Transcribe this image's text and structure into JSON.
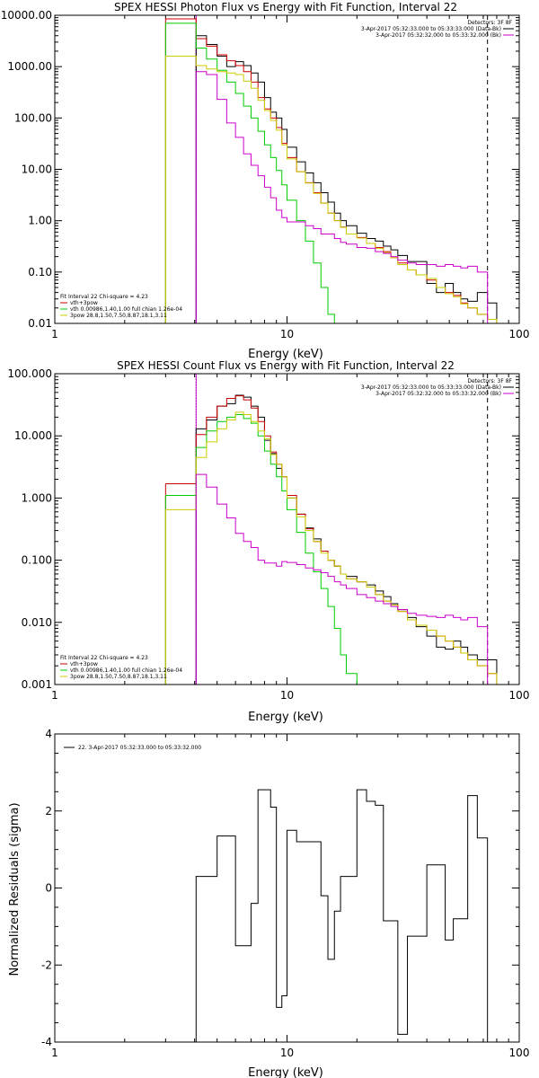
{
  "chart_data": [
    {
      "type": "line",
      "title": "SPEX HESSI Photon Flux vs Energy with Fit Function, Interval 22",
      "xlabel": "Energy (keV)",
      "ylabel": "",
      "xscale": "log",
      "yscale": "log",
      "xlim": [
        1,
        100
      ],
      "ylim": [
        0.01,
        10000
      ],
      "xticks": [
        1,
        10,
        100
      ],
      "xtick_labels": [
        "1",
        "10",
        "100"
      ],
      "yticks": [
        0.01,
        0.1,
        1,
        10,
        100,
        1000,
        10000
      ],
      "ytick_labels": [
        "0.01",
        "0.10",
        "1.00",
        "10.00",
        "100.00",
        "1000.00",
        "10000.00"
      ],
      "vlines": [
        {
          "x": 4.06,
          "style": "dotted",
          "color": "#000000"
        },
        {
          "x": 4.06,
          "style": "solid",
          "color": "#cc00cc"
        },
        {
          "x": 73.0,
          "style": "dashed",
          "color": "#000000"
        }
      ],
      "legend_top_right": [
        {
          "text": "Detectors: 3F 8F",
          "color": "",
          "sample": false
        },
        {
          "text": "3-Apr-2017 05:32:33.000 to 05:33:33.000 (Data-Bk)",
          "color": "#000000",
          "sample": true
        },
        {
          "text": "3-Apr-2017 05:32:32.000 to 05:33:32.000 (Bk)",
          "color": "#cc00cc",
          "sample": true
        }
      ],
      "legend_bottom_left": [
        {
          "text": "Fit Interval 22    Chi-square = 4.23",
          "color": "#000000"
        },
        {
          "text": "vth+3pow",
          "color": "#cc0000"
        },
        {
          "text": "vth 0.00986,1.40,1.00  full chian 1.26e-04",
          "color": "#00cc00"
        },
        {
          "text": "3pow 28.8,1.50,7.50,8.87,18.1,3.11",
          "color": "#cccc00"
        }
      ],
      "bin_edges": [
        3.0,
        4.06,
        4.5,
        5.0,
        5.5,
        6.0,
        6.5,
        7.0,
        7.5,
        8.0,
        8.5,
        9.0,
        9.5,
        10.0,
        11.0,
        12.0,
        13.0,
        14.0,
        15.0,
        16.0,
        17.0,
        18.0,
        20.0,
        22.0,
        24.0,
        26.0,
        28.0,
        30.0,
        33.0,
        36.0,
        40.0,
        44.0,
        48.0,
        52.0,
        56.0,
        60.0,
        66.0,
        73.0,
        80.0,
        88.0
      ],
      "series": [
        {
          "name": "Data-Bk",
          "color": "#000000",
          "values": [
            null,
            4000,
            2700,
            1600,
            1000,
            1250,
            1050,
            750,
            500,
            250,
            130,
            100,
            60,
            27,
            14,
            8.5,
            5.5,
            3.5,
            2.3,
            1.4,
            1.0,
            0.8,
            0.57,
            0.45,
            0.4,
            0.32,
            0.27,
            0.21,
            0.16,
            0.16,
            0.06,
            0.04,
            0.06,
            0.04,
            0.03,
            0.027,
            0.04,
            0.025,
            null
          ]
        },
        {
          "name": "vth+3pow",
          "color": "#cc0000",
          "values": [
            8500,
            3500,
            2500,
            1700,
            1300,
            1050,
            800,
            500,
            250,
            150,
            100,
            65,
            32,
            17,
            9.0,
            5.5,
            3.5,
            2.2,
            1.4,
            1.0,
            0.75,
            0.55,
            0.47,
            0.36,
            0.3,
            0.25,
            0.19,
            0.15,
            0.11,
            0.088,
            0.07,
            0.05,
            0.04,
            0.035,
            0.025,
            0.02,
            0.015,
            0.012,
            0.01
          ]
        },
        {
          "name": "vth",
          "color": "#00cc00",
          "values": [
            7000,
            2300,
            1400,
            850,
            500,
            300,
            170,
            100,
            55,
            30,
            17,
            9.5,
            5.0,
            2.5,
            1.0,
            0.4,
            0.15,
            0.05,
            0.015,
            null,
            null,
            null,
            null,
            null,
            null,
            null,
            null,
            null,
            null,
            null,
            null,
            null,
            null,
            null,
            null,
            null,
            null,
            null,
            null
          ]
        },
        {
          "name": "3pow",
          "color": "#cccc00",
          "values": [
            1600,
            1050,
            900,
            800,
            750,
            700,
            520,
            380,
            220,
            140,
            90,
            58,
            30,
            16,
            9.0,
            5.4,
            3.4,
            2.2,
            1.4,
            1.0,
            0.74,
            0.55,
            0.46,
            0.36,
            0.29,
            0.24,
            0.19,
            0.14,
            0.11,
            0.088,
            0.075,
            0.05,
            0.038,
            0.033,
            0.024,
            0.02,
            0.015,
            0.012,
            0.01
          ]
        },
        {
          "name": "Bk",
          "color": "#cc00cc",
          "values": [
            null,
            800,
            700,
            230,
            80,
            42,
            20,
            12,
            7.5,
            4.5,
            2.8,
            1.6,
            1.15,
            0.95,
            0.95,
            0.8,
            0.7,
            0.55,
            0.55,
            0.45,
            0.38,
            0.35,
            0.3,
            0.29,
            0.25,
            0.23,
            0.2,
            0.17,
            0.15,
            0.14,
            0.14,
            0.13,
            0.14,
            0.13,
            0.12,
            0.13,
            0.1,
            0.01,
            null
          ]
        }
      ]
    },
    {
      "type": "line",
      "title": "SPEX HESSI Count Flux vs Energy with Fit Function, Interval 22",
      "xlabel": "Energy (keV)",
      "ylabel": "",
      "xscale": "log",
      "yscale": "log",
      "xlim": [
        1,
        100
      ],
      "ylim": [
        0.001,
        100
      ],
      "xticks": [
        1,
        10,
        100
      ],
      "xtick_labels": [
        "1",
        "10",
        "100"
      ],
      "yticks": [
        0.001,
        0.01,
        0.1,
        1,
        10,
        100
      ],
      "ytick_labels": [
        "0.001",
        "0.010",
        "0.100",
        "1.000",
        "10.000",
        "100.000"
      ],
      "vlines": [
        {
          "x": 4.06,
          "style": "dotted",
          "color": "#000000"
        },
        {
          "x": 4.06,
          "style": "solid",
          "color": "#cc00cc"
        },
        {
          "x": 73.0,
          "style": "dashed",
          "color": "#000000"
        }
      ],
      "legend_top_right": [
        {
          "text": "Detectors: 3F 8F",
          "color": "",
          "sample": false
        },
        {
          "text": "3-Apr-2017 05:32:33.000 to 05:33:33.000 (Data-Bk)",
          "color": "#000000",
          "sample": true
        },
        {
          "text": "3-Apr-2017 05:32:32.000 to 05:33:32.000 (Bk)",
          "color": "#cc00cc",
          "sample": true
        }
      ],
      "legend_bottom_left": [
        {
          "text": "Fit Interval 22    Chi-square = 4.23",
          "color": "#000000"
        },
        {
          "text": "vth+3pow",
          "color": "#cc0000"
        },
        {
          "text": "vth 0.00986,1.40,1.00  full chian 1.26e-04",
          "color": "#00cc00"
        },
        {
          "text": "3pow 28.8,1.50,7.50,8.87,18.1,3.11",
          "color": "#cccc00"
        }
      ],
      "bin_edges": [
        3.0,
        4.06,
        4.5,
        5.0,
        5.5,
        6.0,
        6.5,
        7.0,
        7.5,
        8.0,
        8.5,
        9.0,
        9.5,
        10.0,
        11.0,
        12.0,
        13.0,
        14.0,
        15.0,
        16.0,
        17.0,
        18.0,
        20.0,
        22.0,
        24.0,
        26.0,
        28.0,
        30.0,
        33.0,
        36.0,
        40.0,
        44.0,
        48.0,
        52.0,
        56.0,
        60.0,
        66.0,
        73.0,
        80.0,
        88.0
      ],
      "series": [
        {
          "name": "Data-Bk",
          "color": "#000000",
          "values": [
            null,
            13,
            18,
            30,
            33,
            45,
            42,
            30,
            20,
            8.5,
            5.2,
            3.0,
            2.2,
            1.0,
            0.55,
            0.33,
            0.22,
            0.14,
            0.1,
            0.08,
            0.06,
            0.055,
            0.045,
            0.04,
            0.032,
            0.026,
            0.02,
            0.016,
            0.012,
            0.0085,
            0.006,
            0.004,
            0.0037,
            0.005,
            0.004,
            0.003,
            0.0025,
            0.0025,
            null
          ]
        },
        {
          "name": "vth+3pow",
          "color": "#cc0000",
          "values": [
            1.7,
            10.5,
            20,
            30,
            40,
            44,
            38,
            28,
            17,
            10,
            5.5,
            3.5,
            2.2,
            1.1,
            0.55,
            0.32,
            0.2,
            0.14,
            0.1,
            0.08,
            0.06,
            0.05,
            0.045,
            0.037,
            0.028,
            0.022,
            0.019,
            0.015,
            0.011,
            0.009,
            0.0075,
            0.006,
            0.005,
            0.004,
            0.0032,
            0.0025,
            0.002,
            0.0015,
            0.001
          ]
        },
        {
          "name": "vth",
          "color": "#00cc00",
          "values": [
            1.1,
            6.5,
            12,
            17,
            20,
            22,
            19,
            16,
            10,
            5.7,
            3.5,
            2.2,
            1.3,
            0.65,
            0.28,
            0.13,
            0.065,
            0.035,
            0.018,
            0.008,
            0.003,
            0.0015,
            null,
            null,
            null,
            null,
            null,
            null,
            null,
            null,
            null,
            null,
            null,
            null,
            null,
            null,
            null,
            null,
            null
          ]
        },
        {
          "name": "3pow",
          "color": "#cccc00",
          "values": [
            0.65,
            4.5,
            8,
            13,
            18,
            24,
            22,
            17,
            12,
            9,
            5,
            3.5,
            2.2,
            1.0,
            0.5,
            0.3,
            0.2,
            0.13,
            0.1,
            0.08,
            0.06,
            0.05,
            0.045,
            0.037,
            0.028,
            0.022,
            0.019,
            0.015,
            0.011,
            0.009,
            0.0075,
            0.006,
            0.005,
            0.004,
            0.0032,
            0.0025,
            0.002,
            0.0015,
            0.001
          ]
        },
        {
          "name": "Bk",
          "color": "#cc00cc",
          "values": [
            null,
            2.4,
            1.5,
            0.8,
            0.48,
            0.27,
            0.2,
            0.16,
            0.1,
            0.09,
            0.09,
            0.08,
            0.095,
            0.092,
            0.085,
            0.075,
            0.07,
            0.063,
            0.055,
            0.045,
            0.04,
            0.035,
            0.028,
            0.025,
            0.022,
            0.02,
            0.018,
            0.016,
            0.014,
            0.013,
            0.0125,
            0.012,
            0.013,
            0.012,
            0.011,
            0.012,
            0.0085,
            0.001,
            null
          ]
        }
      ]
    },
    {
      "type": "line",
      "title": "",
      "xlabel": "Energy (keV)",
      "ylabel": "Normalized Residuals (sigma)",
      "xscale": "log",
      "yscale": "linear",
      "xlim": [
        1,
        100
      ],
      "ylim": [
        -4,
        4
      ],
      "xticks": [
        1,
        10,
        100
      ],
      "xtick_labels": [
        "1",
        "10",
        "100"
      ],
      "yticks": [
        -4,
        -2,
        0,
        2,
        4
      ],
      "ytick_labels": [
        "-4",
        "-2",
        "0",
        "2",
        "4"
      ],
      "vlines": [],
      "legend_top_left": [
        {
          "text": "22.  3-Apr-2017 05:32:33.000 to 05:33:32.000",
          "color": "#000000",
          "sample": true
        }
      ],
      "bin_edges": [
        4.06,
        4.5,
        5.0,
        5.5,
        6.0,
        6.5,
        7.0,
        7.5,
        8.0,
        8.5,
        9.0,
        9.5,
        10.0,
        11.0,
        12.0,
        13.0,
        14.0,
        15.0,
        16.0,
        17.0,
        18.0,
        20.0,
        22.0,
        24.0,
        26.0,
        28.0,
        30.0,
        33.0,
        36.0,
        40.0,
        44.0,
        48.0,
        52.0,
        56.0,
        60.0,
        66.0,
        73.0
      ],
      "series": [
        {
          "name": "",
          "color": "#000000",
          "values": [
            0.3,
            0.3,
            1.35,
            1.35,
            -1.5,
            -1.5,
            -0.4,
            2.55,
            2.55,
            2.1,
            -3.1,
            -2.8,
            1.5,
            1.2,
            1.2,
            1.2,
            -0.2,
            -1.85,
            -0.6,
            0.3,
            0.3,
            2.55,
            2.25,
            2.15,
            -0.85,
            -0.85,
            -3.8,
            -1.25,
            -1.25,
            0.6,
            0.6,
            -1.35,
            -0.8,
            -0.8,
            2.4,
            1.3
          ]
        }
      ]
    }
  ]
}
